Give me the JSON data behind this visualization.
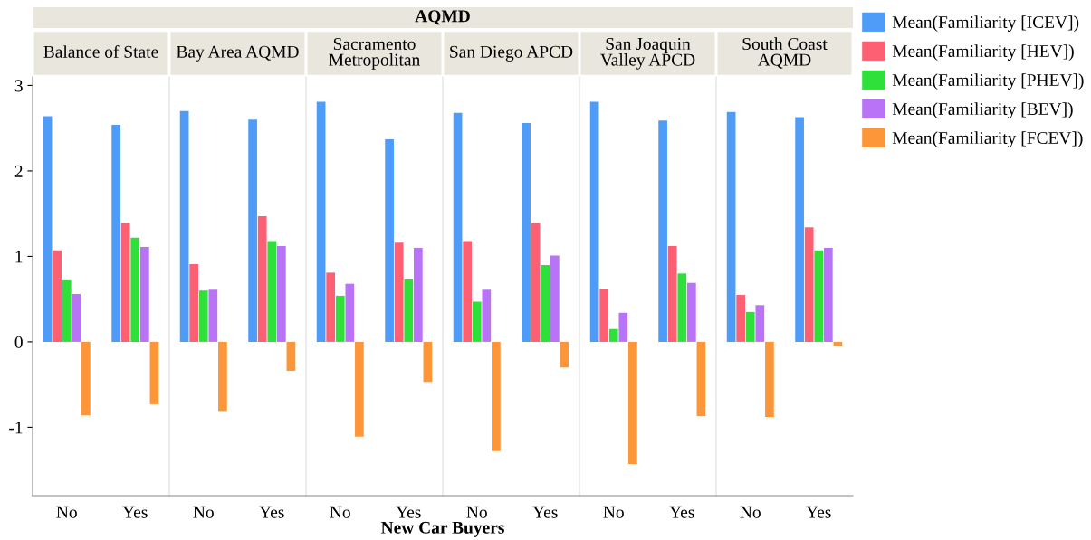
{
  "chart_data": [
    {
      "type": "bar",
      "title": "Balance of State",
      "annotations": [
        "AQMD",
        "New Car Buyers"
      ],
      "categories": [
        "No",
        "Yes"
      ],
      "ylim": [
        -1.8,
        3.1
      ],
      "yticks": [
        -1,
        0,
        1,
        2,
        3
      ],
      "legend": "right",
      "series": [
        {
          "name": "Mean(Familiarity [ICEV])",
          "color": "#4f9cf8",
          "values": [
            2.64,
            2.54
          ]
        },
        {
          "name": "Mean(Familiarity [HEV])",
          "color": "#fd5f73",
          "values": [
            1.07,
            1.39
          ]
        },
        {
          "name": "Mean(Familiarity [PHEV])",
          "color": "#2fe03a",
          "values": [
            0.72,
            1.22
          ]
        },
        {
          "name": "Mean(Familiarity [BEV])",
          "color": "#b873f6",
          "values": [
            0.56,
            1.11
          ]
        },
        {
          "name": "Mean(Familiarity [FCEV])",
          "color": "#fd9638",
          "values": [
            -0.86,
            -0.73
          ]
        }
      ]
    },
    {
      "type": "bar",
      "title": "Bay Area AQMD",
      "categories": [
        "No",
        "Yes"
      ],
      "ylim": [
        -1.8,
        3.1
      ],
      "yticks": [
        -1,
        0,
        1,
        2,
        3
      ],
      "tick_labels": "x",
      "series": [
        {
          "color": "#4f9cf8",
          "values": [
            2.7,
            2.6
          ]
        },
        {
          "color": "#fd5f73",
          "values": [
            0.91,
            1.47
          ]
        },
        {
          "color": "#2fe03a",
          "values": [
            0.6,
            1.18
          ]
        },
        {
          "color": "#b873f6",
          "values": [
            0.61,
            1.12
          ]
        },
        {
          "color": "#fd9638",
          "values": [
            -0.81,
            -0.34
          ]
        }
      ]
    },
    {
      "type": "bar",
      "title": "Sacramento\nMetropolitan",
      "categories": [
        "No",
        "Yes"
      ],
      "ylim": [
        -1.8,
        3.1
      ],
      "yticks": [
        -1,
        0,
        1,
        2,
        3
      ],
      "tick_labels": "x",
      "series": [
        {
          "color": "#4f9cf8",
          "values": [
            2.81,
            2.37
          ]
        },
        {
          "color": "#fd5f73",
          "values": [
            0.81,
            1.16
          ]
        },
        {
          "color": "#2fe03a",
          "values": [
            0.54,
            0.73
          ]
        },
        {
          "color": "#b873f6",
          "values": [
            0.68,
            1.1
          ]
        },
        {
          "color": "#fd9638",
          "values": [
            -1.11,
            -0.47
          ]
        }
      ]
    },
    {
      "type": "bar",
      "title": "San Diego APCD",
      "categories": [
        "No",
        "Yes"
      ],
      "ylim": [
        -1.8,
        3.1
      ],
      "yticks": [
        -1,
        0,
        1,
        2,
        3
      ],
      "tick_labels": "x",
      "series": [
        {
          "color": "#4f9cf8",
          "values": [
            2.68,
            2.56
          ]
        },
        {
          "color": "#fd5f73",
          "values": [
            1.18,
            1.39
          ]
        },
        {
          "color": "#2fe03a",
          "values": [
            0.47,
            0.9
          ]
        },
        {
          "color": "#b873f6",
          "values": [
            0.61,
            1.01
          ]
        },
        {
          "color": "#fd9638",
          "values": [
            -1.28,
            -0.3
          ]
        }
      ]
    },
    {
      "type": "bar",
      "title": "San Joaquin\nValley APCD",
      "categories": [
        "No",
        "Yes"
      ],
      "ylim": [
        -1.8,
        3.1
      ],
      "yticks": [
        -1,
        0,
        1,
        2,
        3
      ],
      "tick_labels": "x",
      "series": [
        {
          "color": "#4f9cf8",
          "values": [
            2.81,
            2.59
          ]
        },
        {
          "color": "#fd5f73",
          "values": [
            0.62,
            1.12
          ]
        },
        {
          "color": "#2fe03a",
          "values": [
            0.15,
            0.8
          ]
        },
        {
          "color": "#b873f6",
          "values": [
            0.34,
            0.69
          ]
        },
        {
          "color": "#fd9638",
          "values": [
            -1.43,
            -0.87
          ]
        }
      ]
    },
    {
      "type": "bar",
      "title": "South Coast\nAQMD",
      "categories": [
        "No",
        "Yes"
      ],
      "ylim": [
        -1.8,
        3.1
      ],
      "yticks": [
        -1,
        0,
        1,
        2,
        3
      ],
      "tick_labels": "x",
      "series": [
        {
          "color": "#4f9cf8",
          "values": [
            2.69,
            2.63
          ]
        },
        {
          "color": "#fd5f73",
          "values": [
            0.55,
            1.34
          ]
        },
        {
          "color": "#2fe03a",
          "values": [
            0.35,
            1.07
          ]
        },
        {
          "color": "#b873f6",
          "values": [
            0.43,
            1.1
          ]
        },
        {
          "color": "#fd9638",
          "values": [
            -0.88,
            -0.05
          ]
        }
      ]
    }
  ]
}
